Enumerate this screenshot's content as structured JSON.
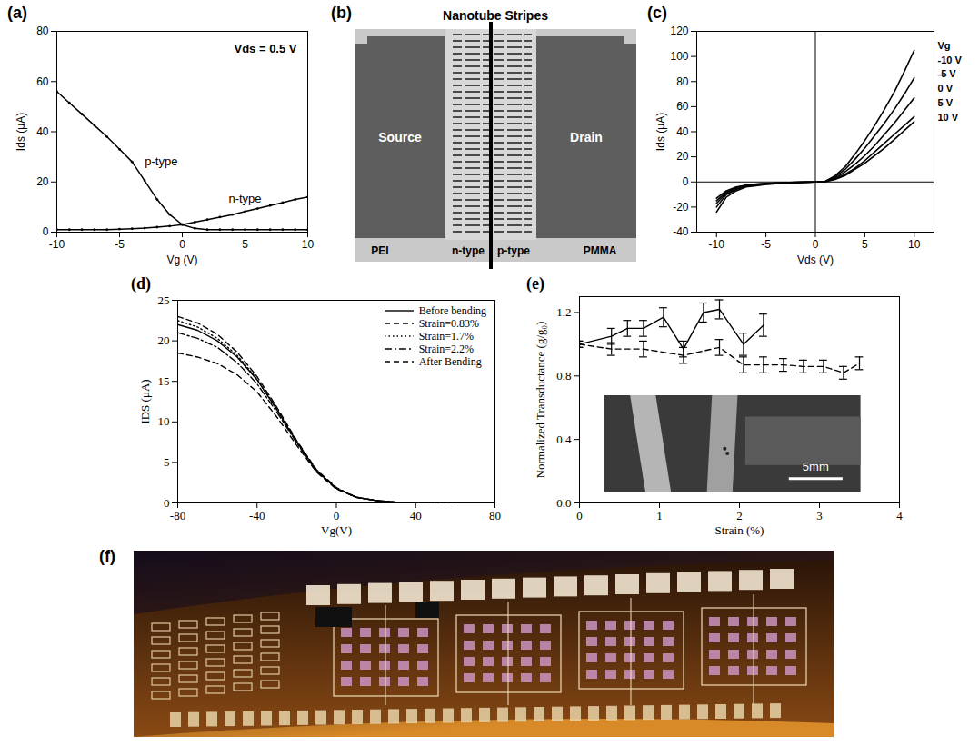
{
  "chart_data": [
    {
      "panel": "(a)",
      "type": "line",
      "x_label": "Vg (V)",
      "y_label": "Ids (μA)",
      "annotations": [
        "Vds = 0.5 V"
      ],
      "x": [
        -10,
        -9,
        -8,
        -7,
        -6,
        -5,
        -4,
        -3,
        -2,
        -1,
        0,
        1,
        2,
        3,
        4,
        5,
        6,
        7,
        8,
        9,
        10
      ],
      "series": [
        {
          "name": "p-type",
          "color": "#000000",
          "marker": "dot",
          "values": [
            56,
            51.5,
            47,
            42.5,
            38,
            33,
            28,
            20.5,
            13,
            7,
            3,
            1.5,
            1,
            1,
            1,
            1,
            1,
            1,
            1,
            1,
            1
          ]
        },
        {
          "name": "n-type",
          "color": "#000000",
          "marker": "dot",
          "values": [
            1,
            1,
            1,
            1,
            1,
            1.2,
            1.4,
            1.6,
            2,
            2.4,
            3,
            4,
            5,
            6,
            7,
            8.2,
            9.4,
            10.6,
            11.8,
            13,
            14
          ]
        }
      ],
      "xlim": [
        -10,
        10
      ],
      "xticks": [
        -10,
        -5,
        0,
        5,
        10
      ],
      "ylim": [
        0,
        80
      ],
      "yticks": [
        0,
        20,
        40,
        60,
        80
      ]
    },
    {
      "panel": "(c)",
      "type": "line",
      "x_label": "Vds (V)",
      "y_label": "Ids (μA)",
      "annotations": [
        "Vg"
      ],
      "legend": "right",
      "x": [
        -10,
        -9,
        -8,
        -7,
        -6,
        -5,
        -4,
        -3,
        -2,
        -1,
        0,
        1,
        2,
        3,
        4,
        5,
        6,
        7,
        8,
        9,
        10
      ],
      "series": [
        {
          "name": "-10 V",
          "color": "#000000",
          "values": [
            -24,
            -12,
            -7,
            -4,
            -3,
            -2,
            -1.5,
            -1,
            -0.5,
            -0.2,
            0,
            0.5,
            5,
            12,
            22,
            33,
            45,
            58,
            72,
            88,
            105
          ]
        },
        {
          "name": "-5 V",
          "color": "#000000",
          "values": [
            -20,
            -10,
            -6,
            -3.5,
            -2.5,
            -1.8,
            -1.2,
            -0.8,
            -0.4,
            -0.2,
            0,
            0.4,
            4,
            10,
            18,
            27,
            37,
            47,
            58,
            70,
            83
          ]
        },
        {
          "name": "0 V",
          "color": "#000000",
          "values": [
            -17,
            -9,
            -5,
            -3,
            -2,
            -1.5,
            -1,
            -0.7,
            -0.4,
            -0.2,
            0,
            0.3,
            3,
            8,
            14,
            21,
            29,
            38,
            47,
            57,
            67
          ]
        },
        {
          "name": "5 V",
          "color": "#000000",
          "values": [
            -15,
            -8,
            -4.5,
            -2.8,
            -1.8,
            -1.3,
            -0.9,
            -0.6,
            -0.3,
            -0.1,
            0,
            0.3,
            2.5,
            6,
            11,
            17,
            24,
            31,
            38,
            45,
            52
          ]
        },
        {
          "name": "10 V",
          "color": "#000000",
          "values": [
            -13,
            -7,
            -4,
            -2.5,
            -1.6,
            -1.2,
            -0.8,
            -0.5,
            -0.3,
            -0.1,
            0,
            0.2,
            2,
            5,
            10,
            15,
            21,
            27,
            34,
            41,
            48
          ]
        }
      ],
      "xlim": [
        -12,
        12
      ],
      "xticks": [
        -10,
        -5,
        0,
        5,
        10
      ],
      "ylim": [
        -40,
        120
      ],
      "yticks": [
        -40,
        -20,
        0,
        20,
        40,
        60,
        80,
        100,
        120
      ]
    },
    {
      "panel": "(d)",
      "type": "line",
      "x_label": "Vg(V)",
      "y_label": "IDS (μA)",
      "legend": "top-right",
      "x": [
        -80,
        -70,
        -60,
        -50,
        -40,
        -30,
        -20,
        -10,
        0,
        10,
        20,
        30,
        40,
        50,
        60
      ],
      "series": [
        {
          "name": "Before bending",
          "color": "#000000",
          "line_style": "solid",
          "values": [
            22,
            21.3,
            20,
            18,
            15.2,
            11.5,
            7.5,
            4,
            1.8,
            0.7,
            0.3,
            0.1,
            0.05,
            0,
            0
          ]
        },
        {
          "name": "Strain=0.83%",
          "color": "#000000",
          "line_style": "dashed",
          "values": [
            23,
            22.2,
            20.8,
            18.6,
            15.6,
            11.8,
            7.7,
            4.1,
            1.9,
            0.7,
            0.3,
            0.1,
            0.05,
            0,
            0
          ]
        },
        {
          "name": "Strain=1.7%",
          "color": "#000000",
          "line_style": "dotted",
          "values": [
            22.5,
            21.7,
            20.3,
            18.2,
            15.3,
            11.6,
            7.6,
            4,
            1.8,
            0.7,
            0.3,
            0.1,
            0.05,
            0,
            0
          ]
        },
        {
          "name": "Strain=2.2%",
          "color": "#000000",
          "line_style": "dashdot",
          "values": [
            21,
            20.3,
            19.2,
            17.3,
            14.7,
            11.2,
            7.4,
            3.9,
            1.8,
            0.7,
            0.3,
            0.1,
            0.05,
            0,
            0
          ]
        },
        {
          "name": "After Bending",
          "color": "#000000",
          "line_style": "dashed",
          "values": [
            18.5,
            18,
            17.2,
            15.8,
            13.7,
            10.6,
            7.1,
            3.8,
            1.7,
            0.7,
            0.3,
            0.1,
            0.05,
            0,
            0
          ]
        }
      ],
      "xlim": [
        -80,
        80
      ],
      "xticks": [
        -80,
        -40,
        0,
        40,
        80
      ],
      "ylim": [
        0,
        25
      ],
      "yticks": [
        0,
        5,
        10,
        15,
        20,
        25
      ]
    },
    {
      "panel": "(e)",
      "type": "line",
      "x_label": "Strain (%)",
      "y_label": "Normalized Transductance (g/g₀)",
      "inset": {
        "scale_bar": "5mm"
      },
      "series": [
        {
          "color": "#000000",
          "line_style": "solid",
          "x": [
            0,
            0.4,
            0.6,
            0.8,
            1.05,
            1.3,
            1.55,
            1.75,
            2.05,
            2.3
          ],
          "values": [
            1.0,
            1.05,
            1.1,
            1.1,
            1.17,
            0.97,
            1.2,
            1.22,
            1.0,
            1.12
          ],
          "errors": [
            0.02,
            0.05,
            0.05,
            0.05,
            0.06,
            0.05,
            0.06,
            0.06,
            0.07,
            0.07
          ]
        },
        {
          "color": "#000000",
          "line_style": "dashed",
          "x": [
            0,
            0.4,
            0.8,
            1.3,
            1.75,
            2.05,
            2.3,
            2.55,
            2.8,
            3.05,
            3.3,
            3.5
          ],
          "values": [
            1.0,
            0.97,
            0.97,
            0.93,
            0.98,
            0.87,
            0.87,
            0.87,
            0.86,
            0.86,
            0.82,
            0.88
          ],
          "errors": [
            0.02,
            0.04,
            0.05,
            0.05,
            0.05,
            0.05,
            0.05,
            0.04,
            0.04,
            0.04,
            0.04,
            0.04
          ]
        }
      ],
      "xlim": [
        0,
        4
      ],
      "xticks": [
        0,
        1,
        2,
        3,
        4
      ],
      "ylim": [
        0,
        1.3
      ],
      "yticks": [
        {
          "value": 0,
          "label": "0.0"
        },
        0.4,
        0.8,
        1.2
      ]
    }
  ],
  "diagram": {
    "panel": "(b)",
    "title": "Nanotube Stripes",
    "source": "Source",
    "drain": "Drain",
    "left_layer": "PEI",
    "right_layer": "PMMA",
    "left_type": "n-type",
    "right_type": "p-type"
  },
  "photo": {
    "panel": "(f)"
  }
}
